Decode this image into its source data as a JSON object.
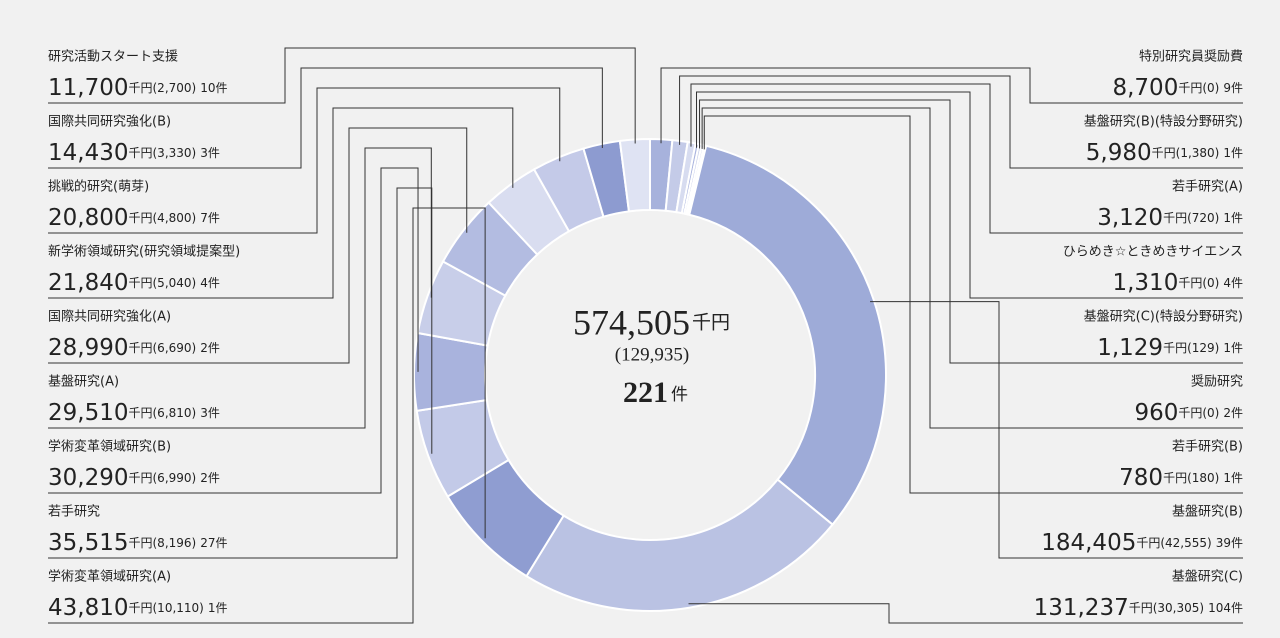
{
  "chart_data": {
    "type": "donut",
    "center_total": "574,505",
    "unit": "千円",
    "center_indirect": "(129,935)",
    "center_count": "221",
    "count_unit": "件",
    "categories": [
      "特別研究員奨励費",
      "基盤研究(B)(特設分野研究)",
      "若手研究(A)",
      "ひらめき☆ときめきサイエンス",
      "基盤研究(C)(特設分野研究)",
      "奨励研究",
      "若手研究(B)",
      "基盤研究(B)",
      "基盤研究(C)",
      "学術変革領域研究(A)",
      "若手研究",
      "学術変革領域研究(B)",
      "基盤研究(A)",
      "国際共同研究強化(A)",
      "新学術領域研究(研究領域提案型)",
      "挑戦的研究(萌芽)",
      "国際共同研究強化(B)",
      "研究活動スタート支援"
    ],
    "values": [
      8700,
      5980,
      3120,
      1310,
      1129,
      960,
      780,
      184405,
      131237,
      43810,
      35515,
      30290,
      29510,
      28990,
      21840,
      20800,
      14430,
      11700
    ],
    "value_labels": [
      "8,700",
      "5,980",
      "3,120",
      "1,310",
      "1,129",
      "960",
      "780",
      "184,405",
      "131,237",
      "43,810",
      "35,515",
      "30,290",
      "29,510",
      "28,990",
      "21,840",
      "20,800",
      "14,430",
      "11,700"
    ],
    "indirect_labels": [
      "(0)",
      "(1,380)",
      "(720)",
      "(0)",
      "(129)",
      "(0)",
      "(180)",
      "(42,555)",
      "(30,305)",
      "(10,110)",
      "(8,196)",
      "(6,990)",
      "(6,810)",
      "(6,690)",
      "(5,040)",
      "(4,800)",
      "(3,330)",
      "(2,700)"
    ],
    "counts": [
      "9件",
      "1件",
      "1件",
      "4件",
      "1件",
      "2件",
      "1件",
      "39件",
      "104件",
      "1件",
      "27件",
      "2件",
      "3件",
      "2件",
      "4件",
      "7件",
      "3件",
      "10件"
    ],
    "colors": [
      "#a7b2dc",
      "#c4cbe8",
      "#d7dcf0",
      "#aab4de",
      "#c9cfea",
      "#dde1f2",
      "#b7bfe3",
      "#9eabd8",
      "#bac2e3",
      "#8f9dd1",
      "#c3cae8",
      "#a9b3dd",
      "#c8cee9",
      "#b3bce1",
      "#d9ddf0",
      "#c4cae8",
      "#8d9bd0",
      "#dfe3f3"
    ]
  }
}
